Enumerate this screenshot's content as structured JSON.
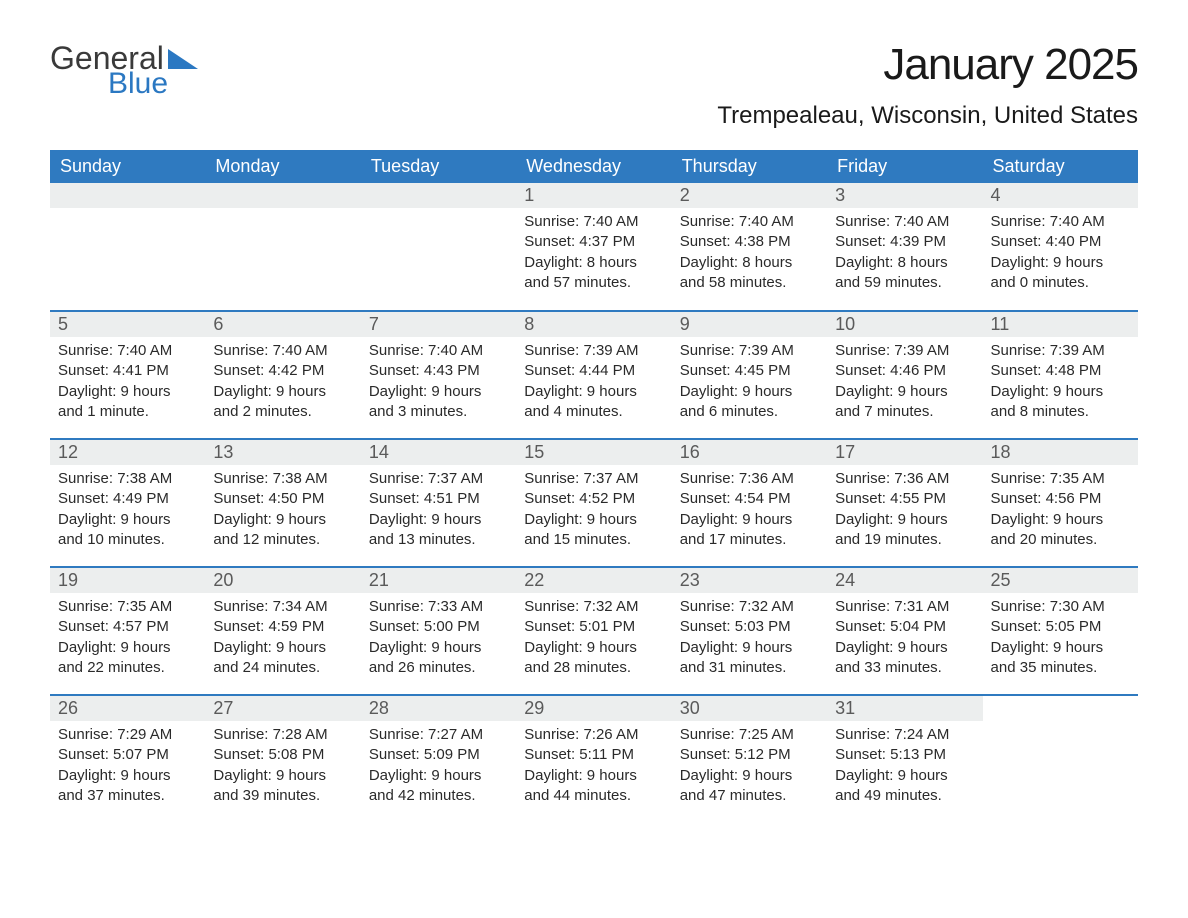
{
  "logo": {
    "text1": "General",
    "text2": "Blue",
    "accent_color": "#2b78c2"
  },
  "title": "January 2025",
  "location": "Trempealeau, Wisconsin, United States",
  "header_bg": "#2f7ac0",
  "daynum_bg": "#eceeee",
  "columns": [
    "Sunday",
    "Monday",
    "Tuesday",
    "Wednesday",
    "Thursday",
    "Friday",
    "Saturday"
  ],
  "weeks": [
    [
      null,
      null,
      null,
      {
        "n": "1",
        "sunrise": "7:40 AM",
        "sunset": "4:37 PM",
        "daylight": "8 hours and 57 minutes."
      },
      {
        "n": "2",
        "sunrise": "7:40 AM",
        "sunset": "4:38 PM",
        "daylight": "8 hours and 58 minutes."
      },
      {
        "n": "3",
        "sunrise": "7:40 AM",
        "sunset": "4:39 PM",
        "daylight": "8 hours and 59 minutes."
      },
      {
        "n": "4",
        "sunrise": "7:40 AM",
        "sunset": "4:40 PM",
        "daylight": "9 hours and 0 minutes."
      }
    ],
    [
      {
        "n": "5",
        "sunrise": "7:40 AM",
        "sunset": "4:41 PM",
        "daylight": "9 hours and 1 minute."
      },
      {
        "n": "6",
        "sunrise": "7:40 AM",
        "sunset": "4:42 PM",
        "daylight": "9 hours and 2 minutes."
      },
      {
        "n": "7",
        "sunrise": "7:40 AM",
        "sunset": "4:43 PM",
        "daylight": "9 hours and 3 minutes."
      },
      {
        "n": "8",
        "sunrise": "7:39 AM",
        "sunset": "4:44 PM",
        "daylight": "9 hours and 4 minutes."
      },
      {
        "n": "9",
        "sunrise": "7:39 AM",
        "sunset": "4:45 PM",
        "daylight": "9 hours and 6 minutes."
      },
      {
        "n": "10",
        "sunrise": "7:39 AM",
        "sunset": "4:46 PM",
        "daylight": "9 hours and 7 minutes."
      },
      {
        "n": "11",
        "sunrise": "7:39 AM",
        "sunset": "4:48 PM",
        "daylight": "9 hours and 8 minutes."
      }
    ],
    [
      {
        "n": "12",
        "sunrise": "7:38 AM",
        "sunset": "4:49 PM",
        "daylight": "9 hours and 10 minutes."
      },
      {
        "n": "13",
        "sunrise": "7:38 AM",
        "sunset": "4:50 PM",
        "daylight": "9 hours and 12 minutes."
      },
      {
        "n": "14",
        "sunrise": "7:37 AM",
        "sunset": "4:51 PM",
        "daylight": "9 hours and 13 minutes."
      },
      {
        "n": "15",
        "sunrise": "7:37 AM",
        "sunset": "4:52 PM",
        "daylight": "9 hours and 15 minutes."
      },
      {
        "n": "16",
        "sunrise": "7:36 AM",
        "sunset": "4:54 PM",
        "daylight": "9 hours and 17 minutes."
      },
      {
        "n": "17",
        "sunrise": "7:36 AM",
        "sunset": "4:55 PM",
        "daylight": "9 hours and 19 minutes."
      },
      {
        "n": "18",
        "sunrise": "7:35 AM",
        "sunset": "4:56 PM",
        "daylight": "9 hours and 20 minutes."
      }
    ],
    [
      {
        "n": "19",
        "sunrise": "7:35 AM",
        "sunset": "4:57 PM",
        "daylight": "9 hours and 22 minutes."
      },
      {
        "n": "20",
        "sunrise": "7:34 AM",
        "sunset": "4:59 PM",
        "daylight": "9 hours and 24 minutes."
      },
      {
        "n": "21",
        "sunrise": "7:33 AM",
        "sunset": "5:00 PM",
        "daylight": "9 hours and 26 minutes."
      },
      {
        "n": "22",
        "sunrise": "7:32 AM",
        "sunset": "5:01 PM",
        "daylight": "9 hours and 28 minutes."
      },
      {
        "n": "23",
        "sunrise": "7:32 AM",
        "sunset": "5:03 PM",
        "daylight": "9 hours and 31 minutes."
      },
      {
        "n": "24",
        "sunrise": "7:31 AM",
        "sunset": "5:04 PM",
        "daylight": "9 hours and 33 minutes."
      },
      {
        "n": "25",
        "sunrise": "7:30 AM",
        "sunset": "5:05 PM",
        "daylight": "9 hours and 35 minutes."
      }
    ],
    [
      {
        "n": "26",
        "sunrise": "7:29 AM",
        "sunset": "5:07 PM",
        "daylight": "9 hours and 37 minutes."
      },
      {
        "n": "27",
        "sunrise": "7:28 AM",
        "sunset": "5:08 PM",
        "daylight": "9 hours and 39 minutes."
      },
      {
        "n": "28",
        "sunrise": "7:27 AM",
        "sunset": "5:09 PM",
        "daylight": "9 hours and 42 minutes."
      },
      {
        "n": "29",
        "sunrise": "7:26 AM",
        "sunset": "5:11 PM",
        "daylight": "9 hours and 44 minutes."
      },
      {
        "n": "30",
        "sunrise": "7:25 AM",
        "sunset": "5:12 PM",
        "daylight": "9 hours and 47 minutes."
      },
      {
        "n": "31",
        "sunrise": "7:24 AM",
        "sunset": "5:13 PM",
        "daylight": "9 hours and 49 minutes."
      },
      null
    ]
  ],
  "labels": {
    "sunrise": "Sunrise: ",
    "sunset": "Sunset: ",
    "daylight": "Daylight: "
  }
}
